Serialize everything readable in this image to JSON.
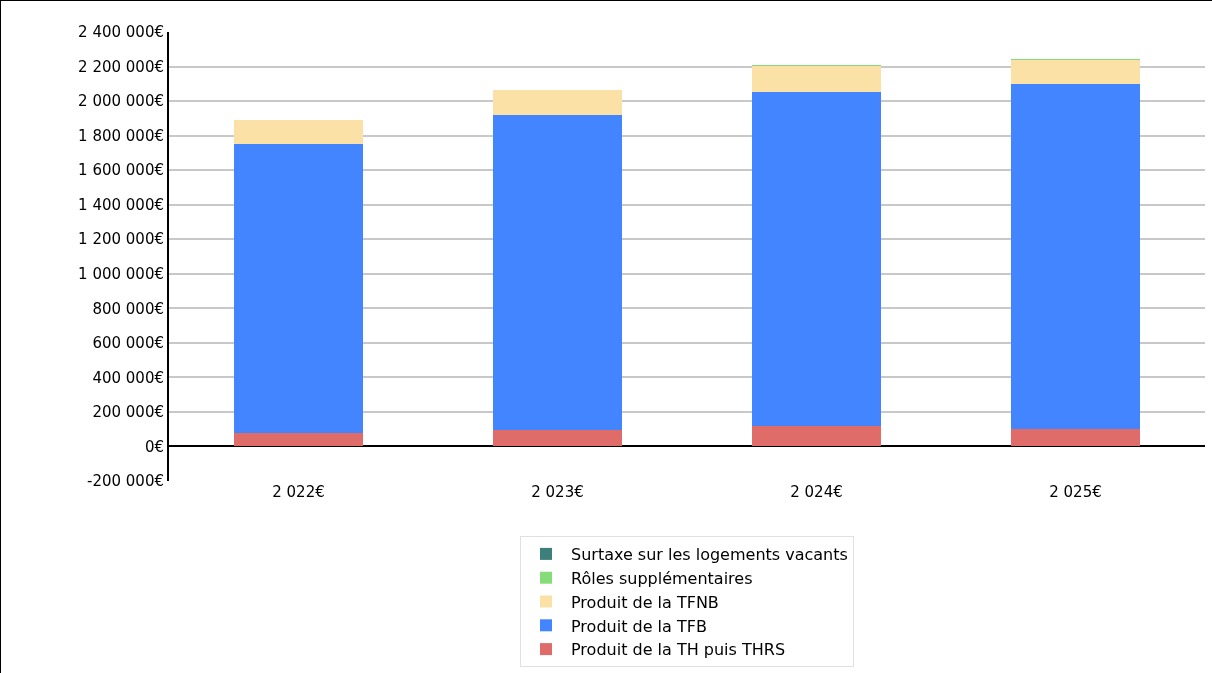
{
  "chart_data": {
    "type": "bar",
    "stacked": true,
    "categories": [
      "2 022€",
      "2 023€",
      "2 024€",
      "2 025€"
    ],
    "series": [
      {
        "name": "Produit de la TH puis THRS",
        "color": "#e06c6a",
        "values": [
          80000,
          98000,
          121000,
          104000
        ]
      },
      {
        "name": "Produit de la TFB",
        "color": "#4285ff",
        "values": [
          1674000,
          1820000,
          1933000,
          1996000
        ]
      },
      {
        "name": "Produit de la TFNB",
        "color": "#fce1a6",
        "values": [
          136000,
          148000,
          150000,
          136000
        ]
      },
      {
        "name": "Rôles supplémentaires",
        "color": "#86dc78",
        "values": [
          0,
          0,
          5000,
          6000
        ]
      },
      {
        "name": "Surtaxe sur les logements vacants",
        "color": "#3d7f7a",
        "values": [
          0,
          0,
          0,
          0
        ]
      }
    ],
    "ylim": [
      -200000,
      2400000
    ],
    "yticks": [
      {
        "value": -200000,
        "label": "-200 000€"
      },
      {
        "value": 0,
        "label": "0€"
      },
      {
        "value": 200000,
        "label": "200 000€"
      },
      {
        "value": 400000,
        "label": "400 000€"
      },
      {
        "value": 600000,
        "label": "600 000€"
      },
      {
        "value": 800000,
        "label": "800 000€"
      },
      {
        "value": 1000000,
        "label": "1 000 000€"
      },
      {
        "value": 1200000,
        "label": "1 200 000€"
      },
      {
        "value": 1400000,
        "label": "1 400 000€"
      },
      {
        "value": 1600000,
        "label": "1 600 000€"
      },
      {
        "value": 1800000,
        "label": "1 800 000€"
      },
      {
        "value": 2000000,
        "label": "2 000 000€"
      },
      {
        "value": 2200000,
        "label": "2 200 000€"
      },
      {
        "value": 2400000,
        "label": "2 400 000€"
      }
    ],
    "grid": "y",
    "legend": "bottom"
  }
}
